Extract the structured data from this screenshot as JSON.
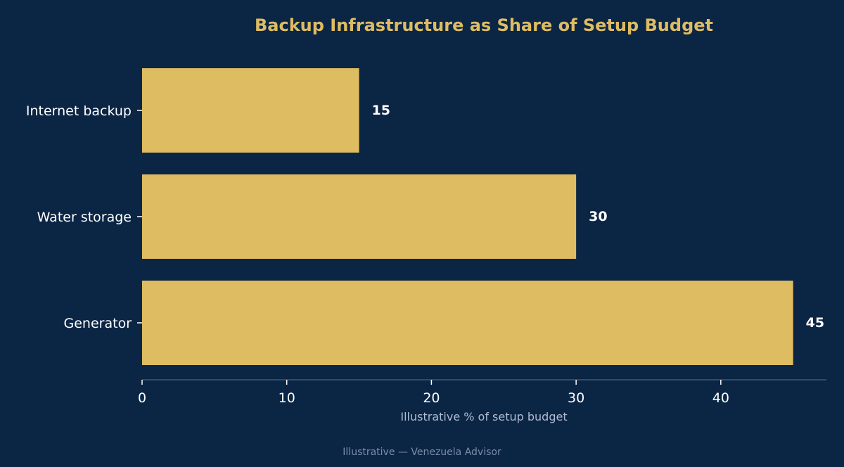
{
  "chart_data": {
    "type": "bar",
    "orientation": "horizontal",
    "title": "Backup Infrastructure as Share of Setup Budget",
    "categories": [
      "Internet backup",
      "Water storage",
      "Generator"
    ],
    "values": [
      15,
      30,
      45
    ],
    "data_labels": [
      "15",
      "30",
      "45"
    ],
    "xlabel": "Illustrative % of setup budget",
    "ylabel": "",
    "xlim": [
      0,
      47.3
    ],
    "x_ticks": [
      0,
      10,
      20,
      30,
      40
    ],
    "x_tick_labels": [
      "0",
      "10",
      "20",
      "30",
      "40"
    ],
    "grid": false,
    "legend": "none"
  },
  "footer": {
    "text": "Illustrative — Venezuela Advisor"
  },
  "colors": {
    "background": "#0b2545",
    "bar": "#debc62",
    "title": "#debc62",
    "axis_line": "#3e5675",
    "text": "#ffffff",
    "muted_text": "#b0bcd0",
    "footer_text": "#7d8ca6"
  }
}
